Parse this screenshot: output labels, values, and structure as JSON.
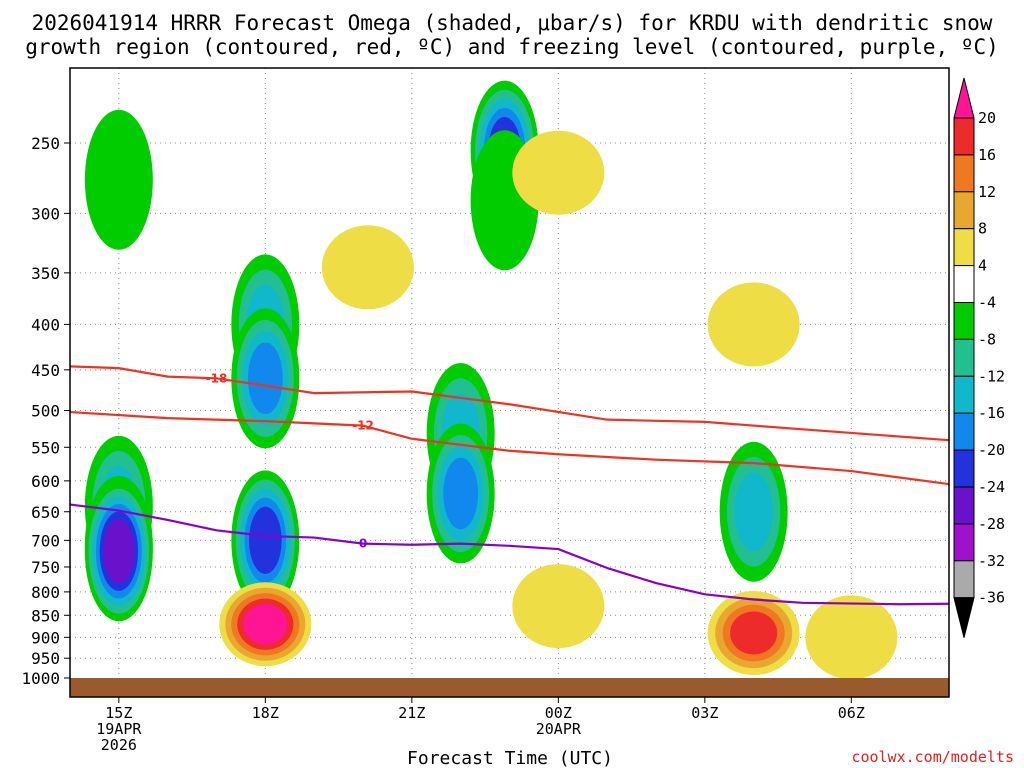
{
  "title": {
    "line1": "2026041914 HRRR Forecast Omega (shaded, μbar/s) for KRDU with dendritic snow",
    "line2": "growth region (contoured, red, ºC) and freezing level (contoured, purple, ºC)"
  },
  "credit": "coolwx.com/modelts",
  "colors": {
    "growth_contour": "#ee3322",
    "freezing_contour": "#8800cc",
    "ground": "#9b5a2e",
    "credit": "#dd2222"
  },
  "chart_data": {
    "type": "heatmap",
    "xlabel": "Forecast Time (UTC)",
    "ylabel": "",
    "y_scale": "log-pressure",
    "x_range_hours_utc": [
      "14Z 19APR 2026",
      "08Z 20APR 2026"
    ],
    "y_range_mb": [
      1000,
      200
    ],
    "x_ticks": [
      {
        "hour": 15,
        "lines": [
          "15Z",
          "19APR",
          "2026"
        ]
      },
      {
        "hour": 18,
        "lines": [
          "18Z"
        ]
      },
      {
        "hour": 21,
        "lines": [
          "21Z"
        ]
      },
      {
        "hour": 24,
        "lines": [
          "00Z",
          "20APR"
        ]
      },
      {
        "hour": 27,
        "lines": [
          "03Z"
        ]
      },
      {
        "hour": 30,
        "lines": [
          "06Z"
        ]
      }
    ],
    "y_ticks": [
      250,
      300,
      350,
      400,
      450,
      500,
      550,
      600,
      650,
      700,
      750,
      800,
      850,
      900,
      950,
      1000
    ],
    "colorbar": {
      "labels": [
        "20",
        "16",
        "12",
        "8",
        "4",
        "-4",
        "-8",
        "-12",
        "-16",
        "-20",
        "-24",
        "-28",
        "-32",
        "-36"
      ],
      "bins": [
        {
          "color": "#ff1493"
        },
        {
          "color": "#ee2b2b"
        },
        {
          "color": "#f07820"
        },
        {
          "color": "#e8a830"
        },
        {
          "color": "#eedd44"
        },
        {
          "color": "#ffffff"
        },
        {
          "color": "#00cc00"
        },
        {
          "color": "#22c090"
        },
        {
          "color": "#11b8cc"
        },
        {
          "color": "#1188ee"
        },
        {
          "color": "#2233dd"
        },
        {
          "color": "#6a11cc"
        },
        {
          "color": "#a011cc"
        },
        {
          "color": "#aaaaaa"
        },
        {
          "color": "#000000"
        }
      ]
    },
    "omega_cells": [
      {
        "hour": 15.0,
        "p": 275,
        "value": -6
      },
      {
        "hour": 15.0,
        "p": 640,
        "value": -13
      },
      {
        "hour": 15.0,
        "p": 710,
        "value": -22
      },
      {
        "hour": 15.0,
        "p": 720,
        "value": -26
      },
      {
        "hour": 18.0,
        "p": 400,
        "value": -12
      },
      {
        "hour": 18.0,
        "p": 460,
        "value": -16
      },
      {
        "hour": 18.0,
        "p": 700,
        "value": -22
      },
      {
        "hour": 18.0,
        "p": 870,
        "value": 22
      },
      {
        "hour": 22.0,
        "p": 530,
        "value": -14
      },
      {
        "hour": 22.0,
        "p": 620,
        "value": -17
      },
      {
        "hour": 22.9,
        "p": 255,
        "value": -22
      },
      {
        "hour": 22.9,
        "p": 290,
        "value": -6
      },
      {
        "hour": 24.0,
        "p": 270,
        "value": 5
      },
      {
        "hour": 20.1,
        "p": 345,
        "value": 5
      },
      {
        "hour": 24.0,
        "p": 830,
        "value": 5
      },
      {
        "hour": 28.0,
        "p": 400,
        "value": 6
      },
      {
        "hour": 28.0,
        "p": 650,
        "value": -14
      },
      {
        "hour": 28.0,
        "p": 890,
        "value": 17
      },
      {
        "hour": 30.0,
        "p": 900,
        "value": 5
      }
    ],
    "contours": [
      {
        "label": "-18",
        "color": "#ee3322",
        "points": [
          [
            14,
            446
          ],
          [
            15,
            448
          ],
          [
            16,
            458
          ],
          [
            17,
            460
          ],
          [
            19,
            478
          ],
          [
            21,
            476
          ],
          [
            23,
            492
          ],
          [
            25,
            512
          ],
          [
            27,
            515
          ],
          [
            29,
            525
          ],
          [
            32,
            540
          ]
        ]
      },
      {
        "label": "-12",
        "color": "#ee3322",
        "points": [
          [
            14,
            502
          ],
          [
            16,
            510
          ],
          [
            18,
            514
          ],
          [
            20,
            520
          ],
          [
            21,
            538
          ],
          [
            23,
            555
          ],
          [
            24,
            560
          ],
          [
            26,
            568
          ],
          [
            28,
            573
          ],
          [
            30,
            585
          ],
          [
            32,
            605
          ]
        ]
      },
      {
        "label": "0",
        "color": "#8800cc",
        "points": [
          [
            14,
            638
          ],
          [
            15,
            648
          ],
          [
            16,
            664
          ],
          [
            17,
            682
          ],
          [
            18,
            692
          ],
          [
            19,
            695
          ],
          [
            20,
            706
          ],
          [
            21,
            708
          ],
          [
            22,
            706
          ],
          [
            23,
            710
          ],
          [
            24,
            716
          ],
          [
            25,
            752
          ],
          [
            26,
            782
          ],
          [
            27,
            805
          ],
          [
            28,
            816
          ],
          [
            29,
            823
          ],
          [
            31,
            826
          ],
          [
            32,
            825
          ]
        ]
      }
    ]
  }
}
